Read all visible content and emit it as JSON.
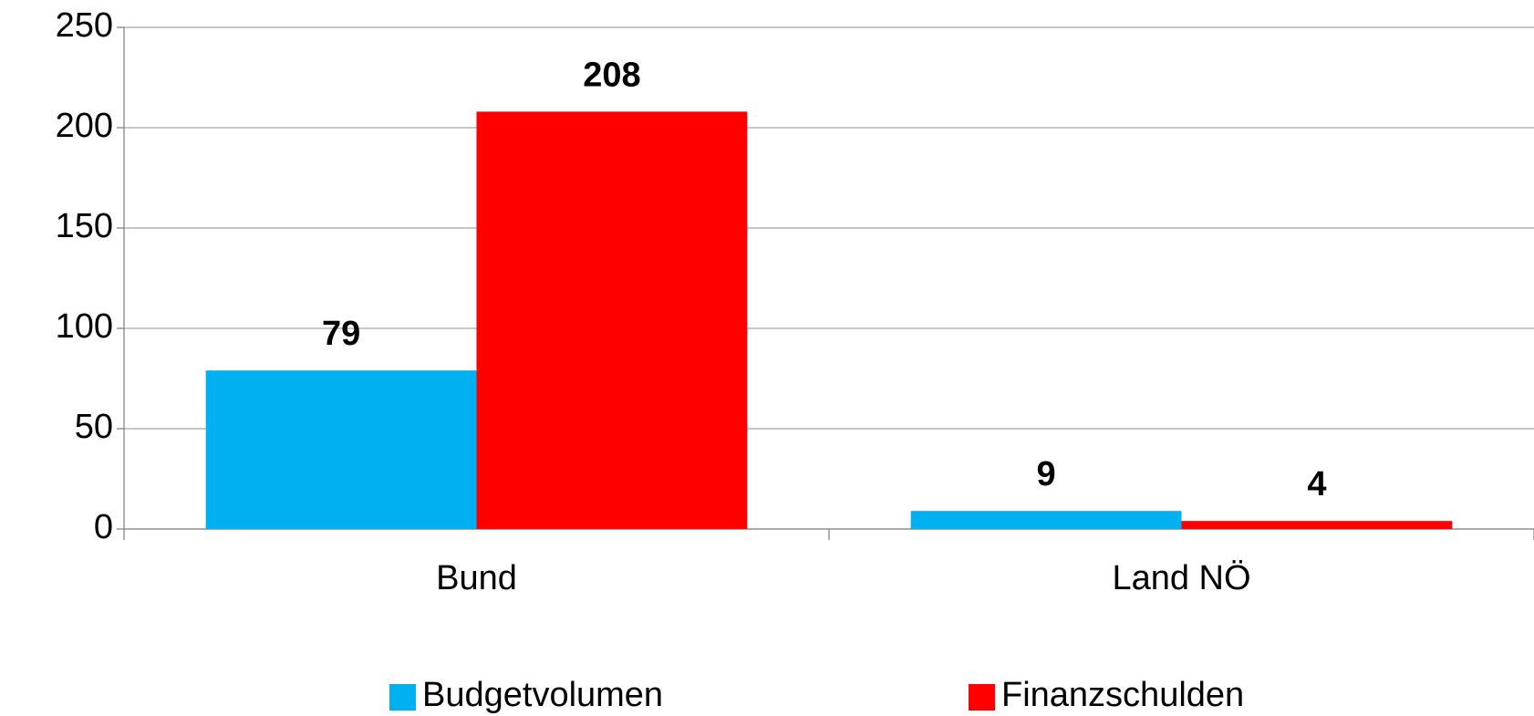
{
  "chart_data": {
    "type": "bar",
    "categories": [
      "Bund",
      "Land NÖ"
    ],
    "series": [
      {
        "name": "Budgetvolumen",
        "color": "#00b0f0",
        "values": [
          79,
          9
        ]
      },
      {
        "name": "Finanzschulden",
        "color": "#ff0000",
        "values": [
          208,
          4
        ]
      }
    ],
    "ylim": [
      0,
      250
    ],
    "yticks": [
      0,
      50,
      100,
      150,
      200,
      250
    ],
    "grid": true,
    "legend": "bottom"
  }
}
